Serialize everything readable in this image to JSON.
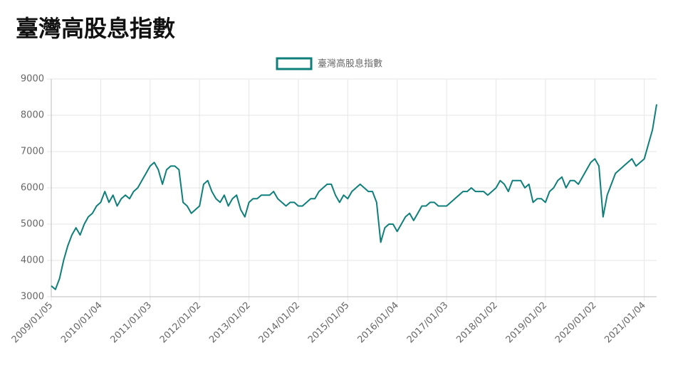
{
  "chart_data": {
    "type": "line",
    "title": "臺灣高股息指數",
    "categories": [
      "2009/01/05",
      null,
      null,
      null,
      null,
      null,
      null,
      null,
      null,
      null,
      null,
      null,
      "2010/01/04",
      null,
      null,
      null,
      null,
      null,
      null,
      null,
      null,
      null,
      null,
      null,
      "2011/01/03",
      null,
      null,
      null,
      null,
      null,
      null,
      null,
      null,
      null,
      null,
      null,
      "2012/01/02",
      null,
      null,
      null,
      null,
      null,
      null,
      null,
      null,
      null,
      null,
      null,
      "2013/01/02",
      null,
      null,
      null,
      null,
      null,
      null,
      null,
      null,
      null,
      null,
      null,
      "2014/01/02",
      null,
      null,
      null,
      null,
      null,
      null,
      null,
      null,
      null,
      null,
      null,
      "2015/01/05",
      null,
      null,
      null,
      null,
      null,
      null,
      null,
      null,
      null,
      null,
      null,
      "2016/01/04",
      null,
      null,
      null,
      null,
      null,
      null,
      null,
      null,
      null,
      null,
      null,
      "2017/01/03",
      null,
      null,
      null,
      null,
      null,
      null,
      null,
      null,
      null,
      null,
      null,
      "2018/01/02",
      null,
      null,
      null,
      null,
      null,
      null,
      null,
      null,
      null,
      null,
      null,
      "2019/01/02",
      null,
      null,
      null,
      null,
      null,
      null,
      null,
      null,
      null,
      null,
      null,
      "2020/01/02",
      null,
      null,
      null,
      null,
      null,
      null,
      null,
      null,
      null,
      null,
      null,
      "2021/01/04",
      null,
      null,
      null
    ],
    "series": [
      {
        "name": "臺灣高股息指數",
        "color": "#0e7f7a",
        "values": [
          3300,
          3200,
          3500,
          4000,
          4400,
          4700,
          4900,
          4700,
          5000,
          5200,
          5300,
          5500,
          5600,
          5900,
          5600,
          5800,
          5500,
          5700,
          5800,
          5700,
          5900,
          6000,
          6200,
          6400,
          6600,
          6700,
          6500,
          6100,
          6500,
          6600,
          6600,
          6500,
          5600,
          5500,
          5300,
          5400,
          5500,
          6100,
          6200,
          5900,
          5700,
          5600,
          5800,
          5500,
          5700,
          5800,
          5400,
          5200,
          5600,
          5700,
          5700,
          5800,
          5800,
          5800,
          5900,
          5700,
          5600,
          5500,
          5600,
          5600,
          5500,
          5500,
          5600,
          5700,
          5700,
          5900,
          6000,
          6100,
          6100,
          5800,
          5600,
          5800,
          5700,
          5900,
          6000,
          6100,
          6000,
          5900,
          5900,
          5600,
          4500,
          4900,
          5000,
          5000,
          4800,
          5000,
          5200,
          5300,
          5100,
          5300,
          5500,
          5500,
          5600,
          5600,
          5500,
          5500,
          5500,
          5600,
          5700,
          5800,
          5900,
          5900,
          6000,
          5900,
          5900,
          5900,
          5800,
          5900,
          6000,
          6200,
          6100,
          5900,
          6200,
          6200,
          6200,
          6000,
          6100,
          5600,
          5700,
          5700,
          5600,
          5900,
          6000,
          6200,
          6300,
          6000,
          6200,
          6200,
          6100,
          6300,
          6500,
          6700,
          6800,
          6600,
          5200,
          5800,
          6100,
          6400,
          6500,
          6600,
          6700,
          6800,
          6600,
          6700,
          6800,
          7200,
          7600,
          8300
        ]
      }
    ],
    "ylim": [
      3000,
      9000
    ],
    "yticks": [
      3000,
      4000,
      5000,
      6000,
      7000,
      8000,
      9000
    ],
    "grid": true
  }
}
